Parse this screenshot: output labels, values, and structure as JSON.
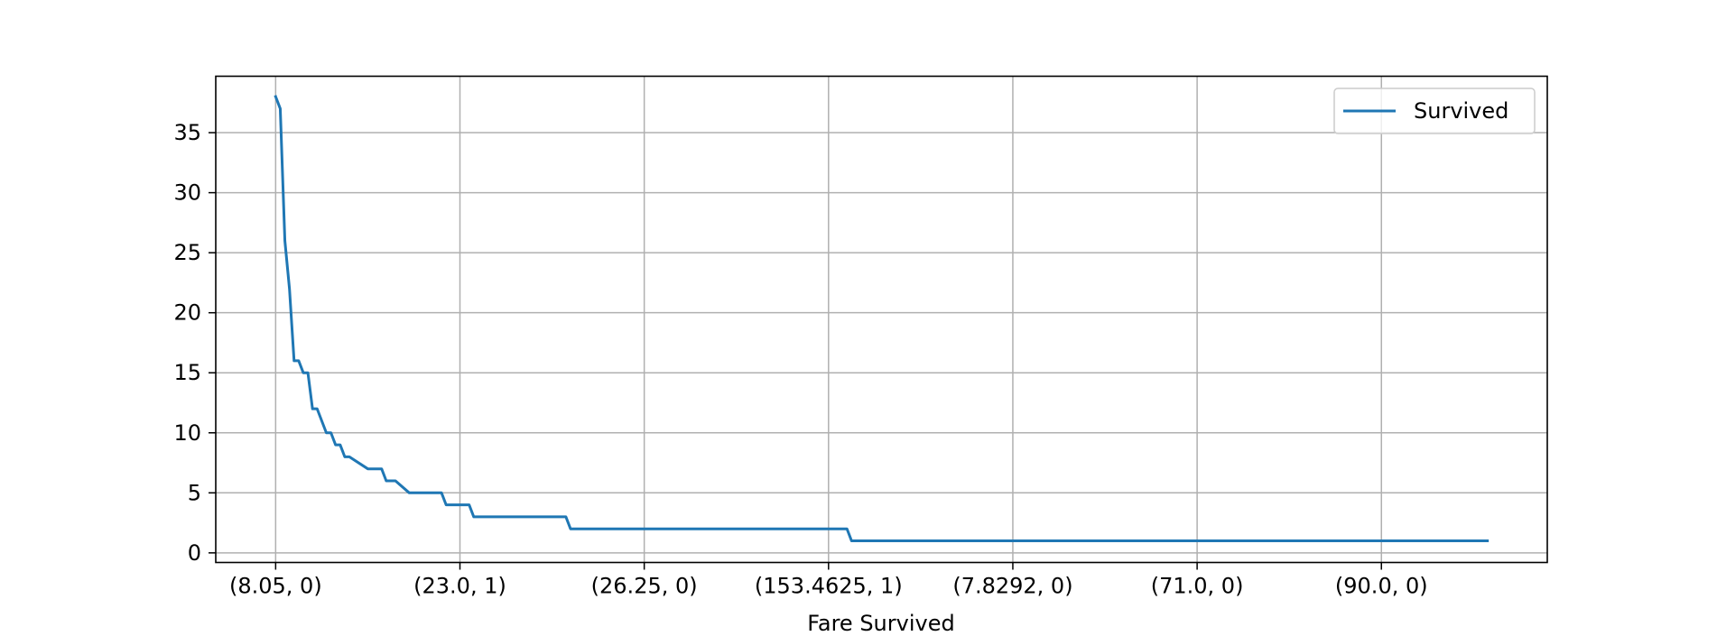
{
  "chart_data": {
    "type": "line",
    "title": "",
    "xlabel": "Fare Survived",
    "ylabel": "",
    "x_tick_labels": [
      "(8.05, 0)",
      "(23.0, 1)",
      "(26.25, 0)",
      "(153.4625, 1)",
      "(7.8292, 0)",
      "(71.0, 0)",
      "(90.0, 0)"
    ],
    "x_tick_positions": [
      0,
      40,
      80,
      120,
      160,
      200,
      240
    ],
    "x_range": [
      -13,
      276
    ],
    "yticks": [
      0,
      5,
      10,
      15,
      20,
      25,
      30,
      35
    ],
    "ylim": [
      -0.8,
      39.7
    ],
    "grid": true,
    "legend_position": "top-right",
    "series": [
      {
        "name": "Survived",
        "color": "#1f77b4",
        "x": [
          0,
          1,
          2,
          3,
          4,
          5,
          6,
          7,
          8,
          9,
          11,
          12,
          13,
          14,
          15,
          16,
          20,
          21,
          22,
          23,
          24,
          25,
          26,
          29,
          30,
          36,
          37,
          38,
          42,
          43,
          52,
          53,
          63,
          64,
          66,
          67,
          76,
          77,
          86,
          87,
          104,
          105,
          124,
          125,
          263
        ],
        "y": [
          38,
          37,
          26,
          22,
          16,
          16,
          15,
          15,
          12,
          12,
          10,
          10,
          9,
          9,
          8,
          8,
          7,
          7,
          7,
          7,
          6,
          6,
          6,
          5,
          5,
          5,
          4,
          4,
          4,
          3,
          3,
          3,
          3,
          2,
          2,
          2,
          2,
          2,
          2,
          2,
          2,
          2,
          2,
          1,
          1
        ]
      }
    ]
  }
}
